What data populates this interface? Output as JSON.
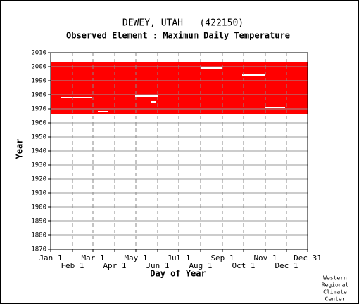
{
  "chart_data": {
    "type": "availability",
    "title": "DEWEY, UTAH   (422150)",
    "subtitle": "Observed Element : Maximum Daily Temperature",
    "x_label": "Day of Year",
    "y_label": "Year",
    "credit": [
      "Western",
      "Regional",
      "Climate",
      "Center"
    ],
    "color": "#ff0000",
    "coverage": {
      "years": [
        1967,
        2003
      ],
      "days": [
        1,
        366
      ]
    },
    "gaps": [
      {
        "year": 1978,
        "days": [
          15,
          60
        ]
      },
      {
        "year": 1968,
        "days": [
          68,
          82
        ]
      },
      {
        "year": 1979,
        "days": [
          121,
          153
        ]
      },
      {
        "year": 1975,
        "days": [
          143,
          150
        ]
      },
      {
        "year": 1999,
        "days": [
          214,
          244
        ]
      },
      {
        "year": 1994,
        "days": [
          273,
          305
        ]
      },
      {
        "year": 1971,
        "days": [
          305,
          334
        ]
      }
    ],
    "xlim": [
      1,
      366
    ],
    "xticks": [
      {
        "value": 1,
        "label": "Jan 1"
      },
      {
        "value": 32,
        "label": "Feb 1"
      },
      {
        "value": 61,
        "label": "Mar 1"
      },
      {
        "value": 92,
        "label": "Apr 1"
      },
      {
        "value": 122,
        "label": "May 1"
      },
      {
        "value": 153,
        "label": "Jun 1"
      },
      {
        "value": 183,
        "label": "Jul 1"
      },
      {
        "value": 214,
        "label": "Aug 1"
      },
      {
        "value": 245,
        "label": "Sep 1"
      },
      {
        "value": 275,
        "label": "Oct 1"
      },
      {
        "value": 306,
        "label": "Nov 1"
      },
      {
        "value": 336,
        "label": "Dec 1"
      },
      {
        "value": 366,
        "label": "Dec 31"
      }
    ],
    "ylim": [
      1870,
      2010
    ],
    "yticks": [
      1870,
      1880,
      1890,
      1900,
      1910,
      1920,
      1930,
      1940,
      1950,
      1960,
      1970,
      1980,
      1990,
      2000,
      2010
    ],
    "grid": true
  }
}
